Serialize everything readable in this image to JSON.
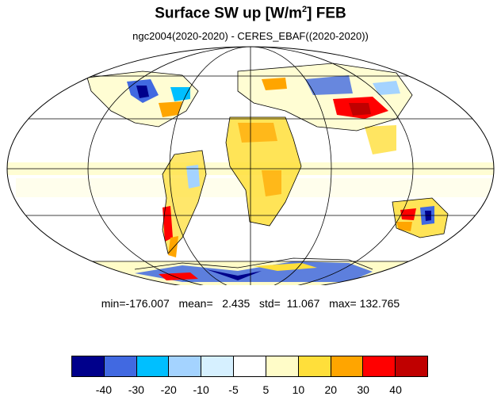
{
  "title": {
    "main": "Surface SW up [W/m",
    "superscript": "2",
    "suffix": "]  FEB"
  },
  "subtitle": "ngc2004(2020-2020) - CERES_EBAF((2020-2020))",
  "stats": "min=-176.007   mean=   2.435   std=  11.067   max= 132.765",
  "colorbar": {
    "colors": [
      "#00008b",
      "#4169e1",
      "#00bfff",
      "#a4d3ff",
      "#d6f0ff",
      "#ffffff",
      "#fffcc8",
      "#ffdf3a",
      "#ffa500",
      "#ff0000",
      "#c00000"
    ],
    "labels": [
      "-40",
      "-30",
      "-20",
      "-10",
      "-5",
      "5",
      "10",
      "20",
      "30",
      "40"
    ]
  }
}
